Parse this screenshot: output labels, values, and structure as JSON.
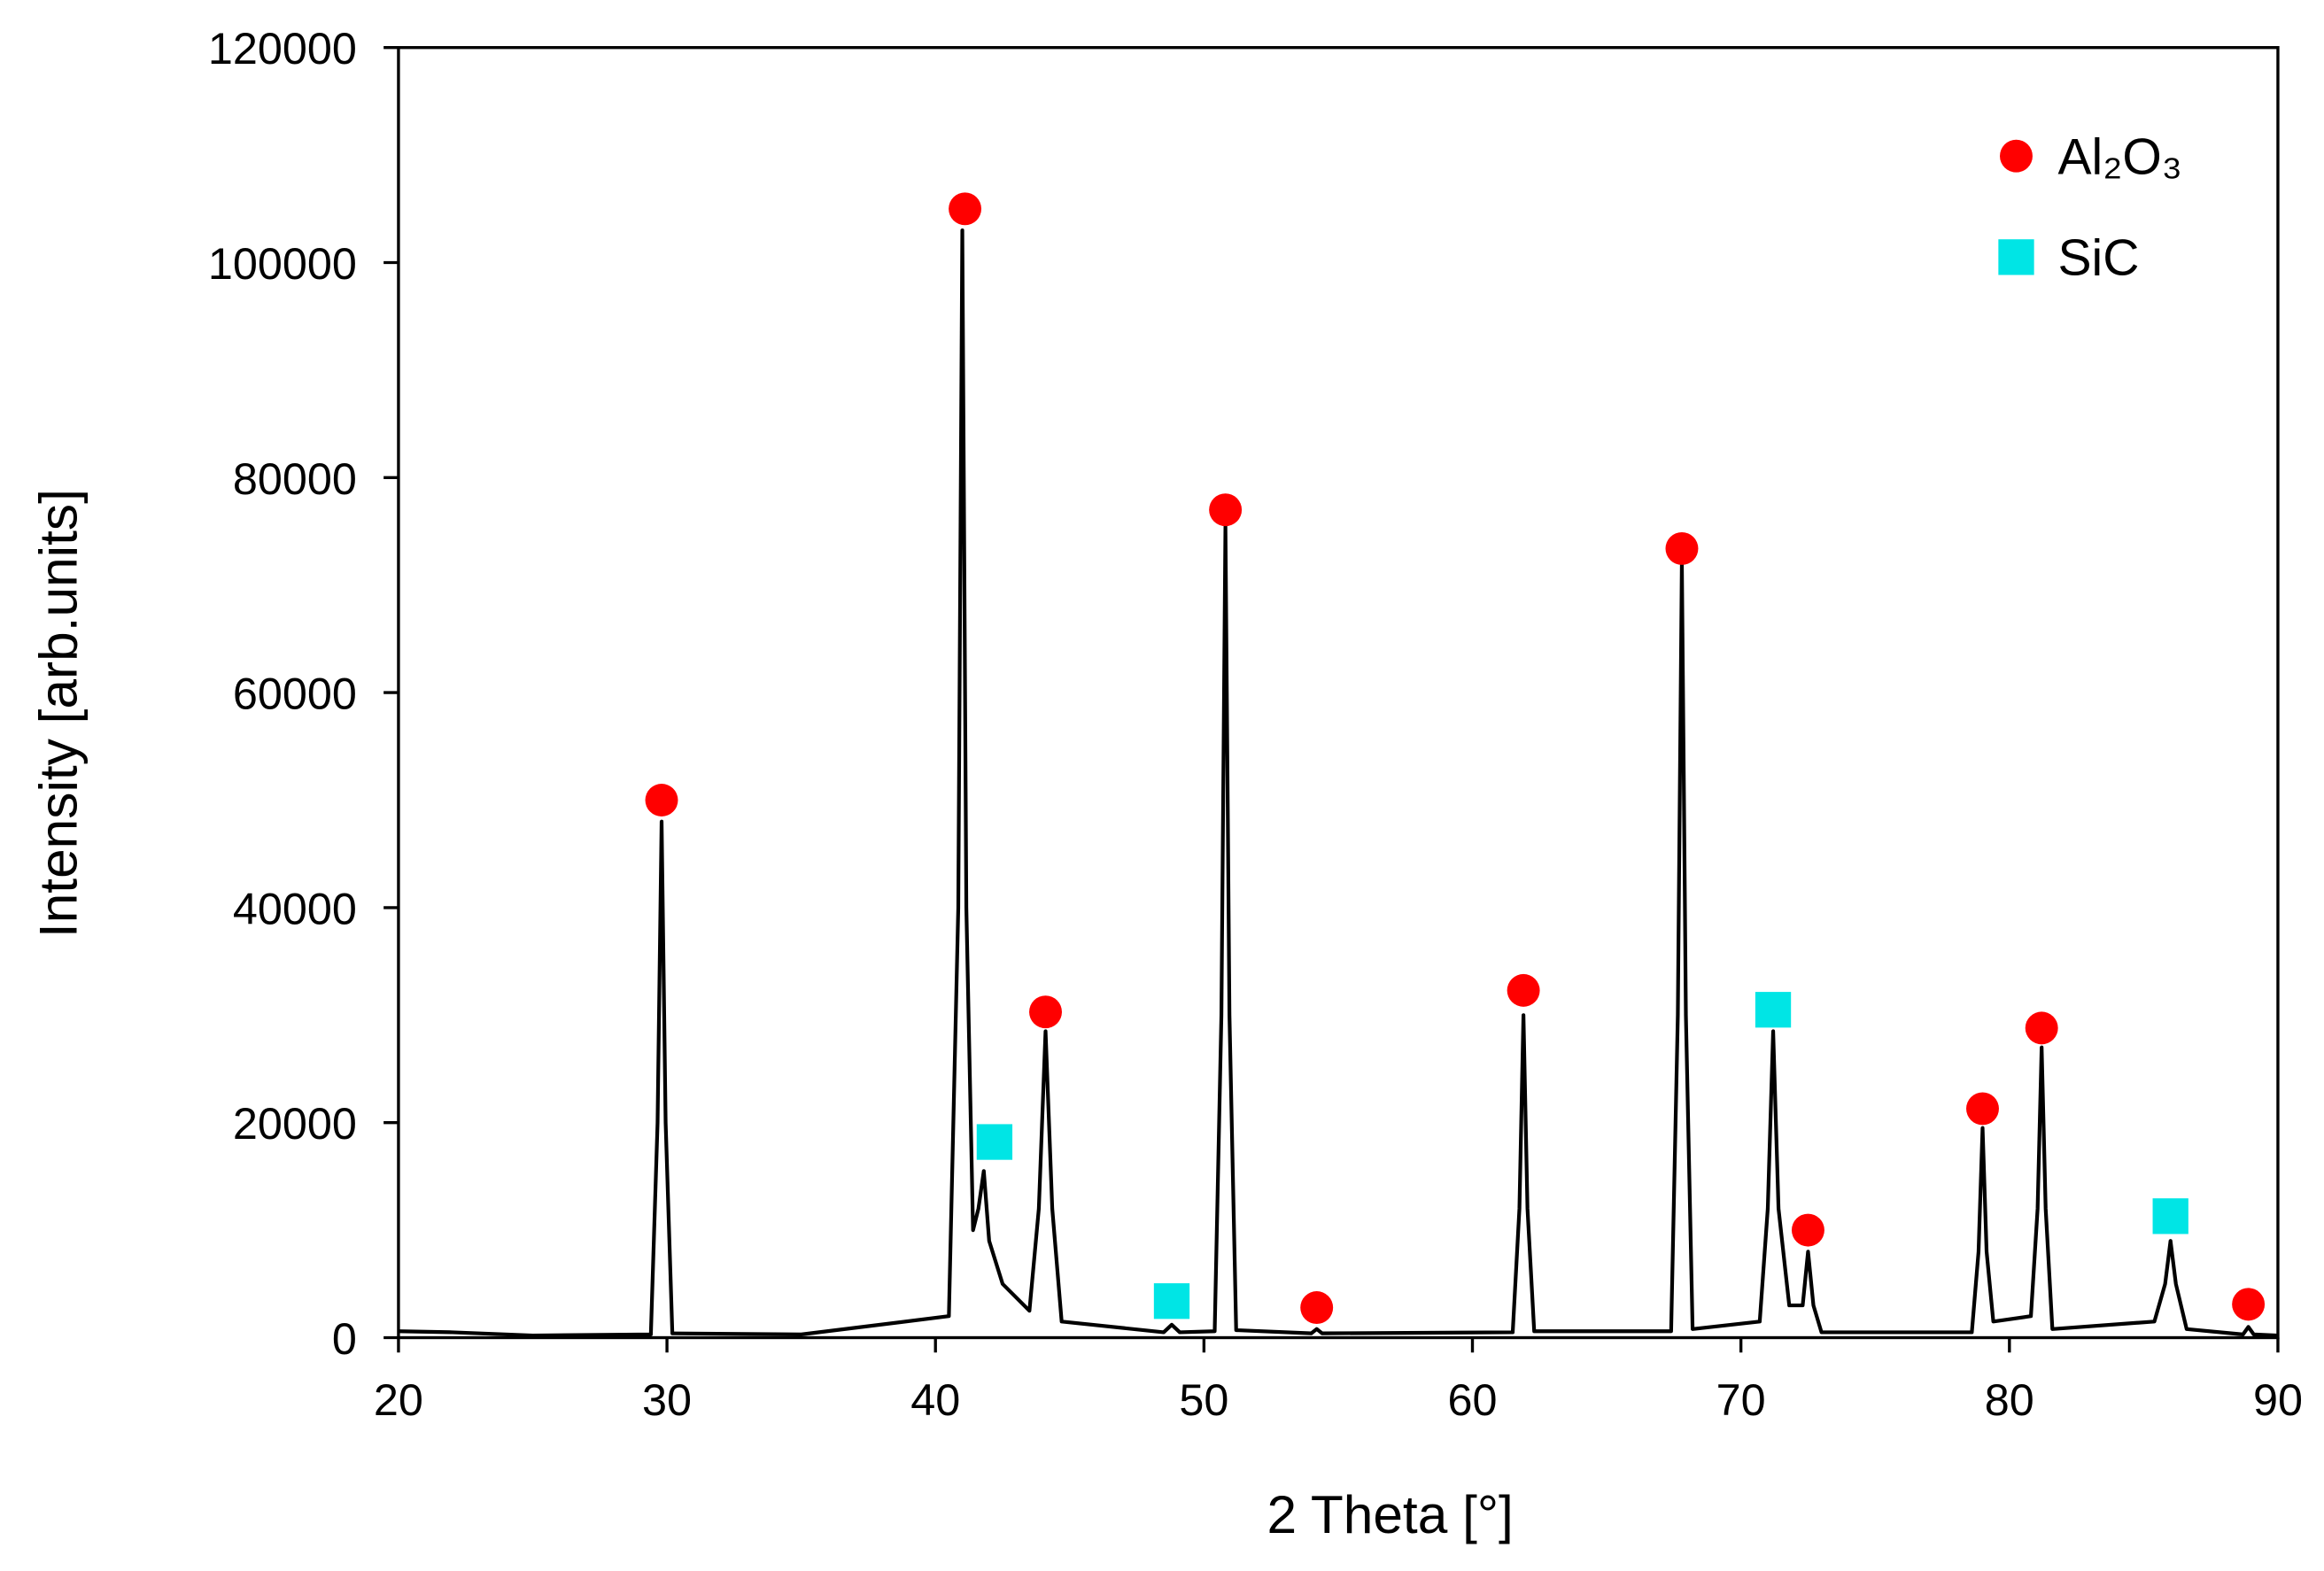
{
  "chart_data": {
    "type": "line",
    "xlabel": "2 Theta [°]",
    "ylabel": "Intensity [arb.units]",
    "xlim": [
      20,
      90
    ],
    "xticks": [
      20,
      30,
      40,
      50,
      60,
      70,
      80,
      90
    ],
    "ylim": [
      0,
      120000
    ],
    "yticks": [
      0,
      20000,
      40000,
      60000,
      80000,
      100000,
      120000
    ],
    "legend": "upper right",
    "series": [
      {
        "style": "line",
        "color": "#000000",
        "x": [
          20,
          22,
          25,
          29.4,
          29.65,
          29.8,
          29.95,
          30.2,
          35,
          40.5,
          40.85,
          41.0,
          41.15,
          41.4,
          41.6,
          41.8,
          42.0,
          42.5,
          43.5,
          43.85,
          44.1,
          44.35,
          44.7,
          48.5,
          48.8,
          49.1,
          50.4,
          50.65,
          50.8,
          50.95,
          51.2,
          54.0,
          54.2,
          54.4,
          61.5,
          61.75,
          61.9,
          62.05,
          62.3,
          67.4,
          67.65,
          67.8,
          67.95,
          68.2,
          70.7,
          71.0,
          71.2,
          71.4,
          71.8,
          72.3,
          72.5,
          72.7,
          73.0,
          78.6,
          78.85,
          79.0,
          79.15,
          79.4,
          80.8,
          81.05,
          81.2,
          81.35,
          81.6,
          85.4,
          85.8,
          86.0,
          86.2,
          86.6,
          88.7,
          88.9,
          89.1,
          90
        ],
        "values": [
          600,
          500,
          200,
          300,
          20000,
          48000,
          20000,
          400,
          300,
          2000,
          40000,
          103000,
          40000,
          10000,
          12000,
          15500,
          9000,
          5000,
          2500,
          12000,
          28500,
          12000,
          1500,
          500,
          1200,
          500,
          600,
          30000,
          75500,
          30000,
          700,
          400,
          800,
          400,
          500,
          12000,
          30000,
          12000,
          600,
          600,
          30000,
          72000,
          30000,
          800,
          1500,
          12000,
          28500,
          12000,
          3000,
          3000,
          8000,
          3000,
          500,
          500,
          8000,
          19500,
          8000,
          1500,
          2000,
          12000,
          27000,
          12000,
          800,
          1500,
          5000,
          9000,
          5000,
          800,
          300,
          1000,
          300,
          200
        ]
      },
      {
        "name": "Al₂O₃",
        "style": "circle",
        "color": "#ff0000",
        "x": [
          29.8,
          41.1,
          44.1,
          50.8,
          54.2,
          61.9,
          67.8,
          72.5,
          79.0,
          81.2,
          88.9
        ],
        "values": [
          50000,
          105000,
          30300,
          77000,
          2800,
          32300,
          73400,
          10000,
          21300,
          28800,
          3100
        ]
      },
      {
        "name": "SiC",
        "style": "square",
        "color": "#00e5e5",
        "x": [
          42.2,
          48.8,
          71.2,
          86.0
        ],
        "values": [
          18200,
          3400,
          30500,
          11300
        ]
      }
    ]
  }
}
